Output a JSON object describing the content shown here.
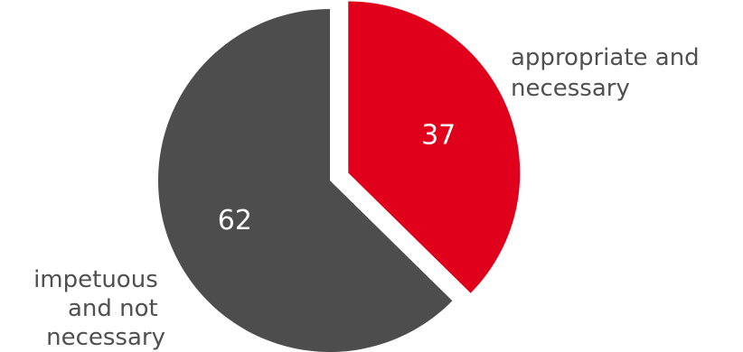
{
  "chart_data": {
    "type": "pie",
    "categories": [
      "appropriate and necessary",
      "impetuous and not necessary"
    ],
    "values": [
      37,
      62
    ],
    "colors": [
      "#e0001b",
      "#4d4d4d"
    ],
    "category_label_lines": [
      [
        "appropriate and",
        "necessary"
      ],
      [
        "impetuous",
        "and not",
        "necessary"
      ]
    ],
    "exploded_slice": "appropriate and necessary",
    "legend": "none"
  }
}
